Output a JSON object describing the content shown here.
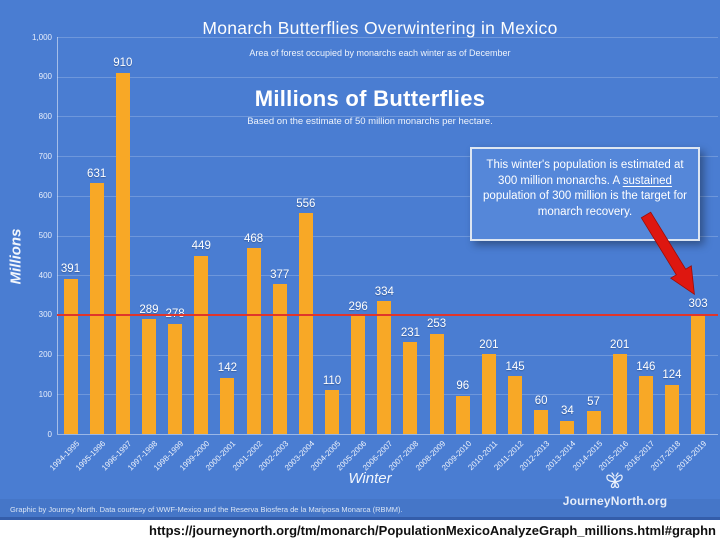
{
  "page": {
    "url_bar": "https://journeynorth.org/tm/monarch/PopulationMexicoAnalyzeGraph_millions.html#graphn"
  },
  "chart_data": {
    "type": "bar",
    "title": "Monarch Butterflies Overwintering in Mexico",
    "subtitle": "Area of forest occupied by monarchs each winter as of December",
    "heading": "Millions of Butterflies",
    "heading_note": "Based on the estimate of 50 million monarchs per hectare.",
    "xlabel": "Winter",
    "ylabel": "Millions",
    "ylim": [
      0,
      1000
    ],
    "ytick_values": [
      0,
      100,
      200,
      300,
      400,
      500,
      600,
      700,
      800,
      900,
      1000
    ],
    "ytick_labels": [
      "0",
      "100",
      "200",
      "300",
      "400",
      "500",
      "600",
      "700",
      "800",
      "900",
      "1,000"
    ],
    "grid": true,
    "legend_position": "none",
    "categories": [
      "1994-1995",
      "1995-1996",
      "1996-1997",
      "1997-1998",
      "1998-1999",
      "1999-2000",
      "2000-2001",
      "2001-2002",
      "2002-2003",
      "2003-2004",
      "2004-2005",
      "2005-2006",
      "2006-2007",
      "2007-2008",
      "2008-2009",
      "2009-2010",
      "2010-2011",
      "2011-2012",
      "2012-2013",
      "2013-2014",
      "2014-2015",
      "2015-2016",
      "2016-2017",
      "2017-2018",
      "2018-2019"
    ],
    "values": [
      391,
      631,
      910,
      289,
      278,
      449,
      142,
      468,
      377,
      556,
      110,
      296,
      334,
      231,
      253,
      96,
      201,
      145,
      60,
      34,
      57,
      201,
      146,
      124,
      303
    ],
    "bar_color": "#F8A826",
    "background_color": "#4A7DD2",
    "reference_line": {
      "value": 300,
      "color": "#E0352B"
    },
    "annotation": {
      "text_before": "This winter's population is estimated at 300 million monarchs. A ",
      "text_underlined": "sustained",
      "text_after": " population of 300 million is the target for monarch recovery."
    },
    "arrow_color": "#DE1710"
  },
  "footer": {
    "credit": "Graphic by Journey North. Data courtesy of WWF-Mexico and the Reserva Biosfera de la Mariposa Monarca (RBMM).",
    "logo_text": "JourneyNorth.org"
  }
}
